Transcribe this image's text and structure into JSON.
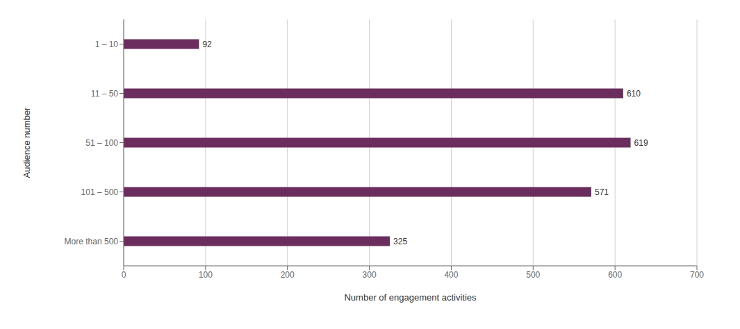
{
  "chart_data": {
    "type": "bar",
    "orientation": "horizontal",
    "categories": [
      "1 – 10",
      "11 – 50",
      "51 – 100",
      "101 – 500",
      "More than 500"
    ],
    "values": [
      92,
      610,
      619,
      571,
      325
    ],
    "color": "#6B2D5E",
    "xlabel": "Number of engagement activities",
    "ylabel": "Audience number",
    "xlim": [
      0,
      700
    ],
    "xticks": [
      0,
      100,
      200,
      300,
      400,
      500,
      600,
      700
    ],
    "grid": true,
    "data_labels": true
  }
}
